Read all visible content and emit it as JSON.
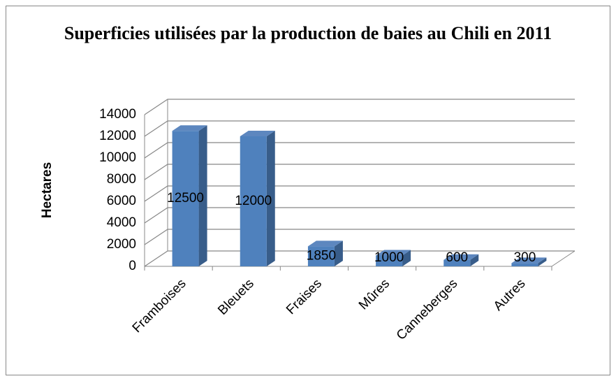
{
  "chart_data": {
    "type": "bar3d",
    "title": "Superficies utilisées par la production de baies au Chili en 2011",
    "y_label": "Hectares",
    "categories": [
      "Framboises",
      "Bleuets",
      "Fraises",
      "Mûres",
      "Canneberges",
      "Autres"
    ],
    "values": [
      12500,
      12000,
      1850,
      1000,
      600,
      300
    ],
    "color": "#4f81bd",
    "ylim": [
      0,
      14000
    ],
    "yticks": [
      0,
      2000,
      4000,
      6000,
      8000,
      10000,
      12000,
      14000
    ],
    "grid": true
  }
}
